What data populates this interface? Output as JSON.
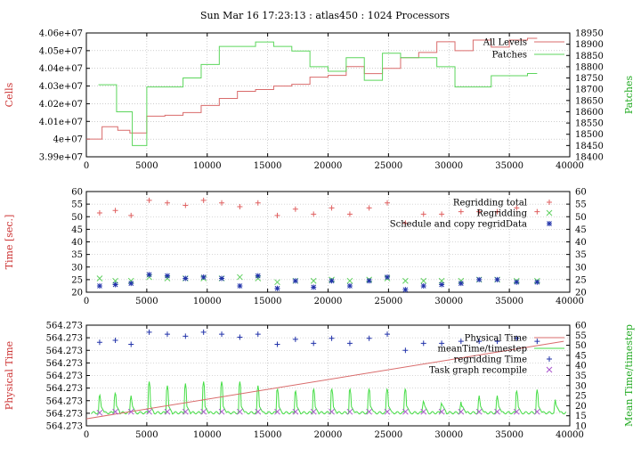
{
  "title": "Sun Mar 16 17:23:13 : atlas450 : 1024 Processors",
  "chart_data": [
    {
      "type": "line",
      "ylabel_left": "Cells",
      "ylabel_right": "Patches",
      "xlim": [
        0,
        40000
      ],
      "ylim_left": [
        39900000,
        40600000
      ],
      "ylim_right": [
        18400,
        18950
      ],
      "x_ticks": [
        "0",
        "5000",
        "10000",
        "15000",
        "20000",
        "25000",
        "30000",
        "35000",
        "40000"
      ],
      "y_ticks_left": [
        "3.99e+07",
        "4e+07",
        "4.01e+07",
        "4.02e+07",
        "4.03e+07",
        "4.04e+07",
        "4.05e+07",
        "4.06e+07"
      ],
      "y_ticks_right": [
        "18400",
        "18450",
        "18500",
        "18550",
        "18600",
        "18650",
        "18700",
        "18750",
        "18800",
        "18850",
        "18900",
        "18950"
      ],
      "grid": true,
      "legend_position": "top-right",
      "series": [
        {
          "name": "All Levels",
          "axis": "left",
          "step": true,
          "color": "#d96b6b",
          "x": [
            0,
            1300,
            2600,
            3600,
            5000,
            6500,
            8000,
            9500,
            11000,
            12500,
            14000,
            15500,
            17000,
            18500,
            20000,
            21500,
            23000,
            24500,
            26000,
            27500,
            29000,
            30500,
            32000,
            33500,
            35000,
            36500,
            37300
          ],
          "y": [
            40000000,
            40070000,
            40050000,
            40035000,
            40130000,
            40135000,
            40150000,
            40190000,
            40230000,
            40270000,
            40280000,
            40300000,
            40310000,
            40350000,
            40360000,
            40410000,
            40370000,
            40400000,
            40460000,
            40490000,
            40550000,
            40500000,
            40560000,
            40520000,
            40560000,
            40570000,
            40570000
          ]
        },
        {
          "name": "Patches",
          "axis": "right",
          "step": true,
          "color": "#5cd65c",
          "x": [
            1000,
            2500,
            3800,
            5000,
            6500,
            8000,
            9500,
            11000,
            12500,
            14000,
            15500,
            17000,
            18500,
            20000,
            21500,
            23000,
            24500,
            26000,
            27500,
            29000,
            30500,
            32000,
            33500,
            35000,
            36500,
            37300
          ],
          "y": [
            18720,
            18600,
            18450,
            18710,
            18710,
            18750,
            18810,
            18890,
            18890,
            18910,
            18890,
            18870,
            18800,
            18780,
            18840,
            18740,
            18860,
            18840,
            18840,
            18800,
            18710,
            18710,
            18760,
            18760,
            18770,
            18770
          ]
        }
      ]
    },
    {
      "type": "scatter",
      "ylabel_left": "Time [sec.]",
      "xlim": [
        0,
        40000
      ],
      "ylim": [
        20,
        60
      ],
      "x_ticks": [
        "0",
        "5000",
        "10000",
        "15000",
        "20000",
        "25000",
        "30000",
        "35000",
        "40000"
      ],
      "y_ticks": [
        "20",
        "25",
        "30",
        "35",
        "40",
        "45",
        "50",
        "55",
        "60"
      ],
      "grid": true,
      "legend_position": "top-right",
      "series": [
        {
          "name": "Regridding total",
          "marker": "plus",
          "color": "#e06060",
          "x": [
            1100,
            2400,
            3700,
            5200,
            6700,
            8200,
            9700,
            11200,
            12700,
            14200,
            15800,
            17300,
            18800,
            20300,
            21800,
            23400,
            24900,
            26400,
            27900,
            29400,
            31000,
            32500,
            34000,
            35600,
            37300
          ],
          "y": [
            51.5,
            52.5,
            50.5,
            56.5,
            55.5,
            54.5,
            56.5,
            55.5,
            54.0,
            55.5,
            50.5,
            53.0,
            51.0,
            53.5,
            51.0,
            53.5,
            55.5,
            47.5,
            51.0,
            51.0,
            52.0,
            52.0,
            52.0,
            53.5,
            52.0
          ]
        },
        {
          "name": "Regridding",
          "marker": "x",
          "color": "#60d060",
          "x": [
            1100,
            2400,
            3700,
            5200,
            6700,
            8200,
            9700,
            11200,
            12700,
            14200,
            15800,
            17300,
            18800,
            20300,
            21800,
            23400,
            24900,
            26400,
            27900,
            29400,
            31000,
            32500,
            34000,
            35600,
            37300
          ],
          "y": [
            25.5,
            24.5,
            24.5,
            26.0,
            25.5,
            25.5,
            25.5,
            25.5,
            26.0,
            25.5,
            24.0,
            24.5,
            24.5,
            25.0,
            24.5,
            25.0,
            25.5,
            24.5,
            24.5,
            24.5,
            24.5,
            25.0,
            25.0,
            24.5,
            24.5
          ]
        },
        {
          "name": "Schedule and copy regridData",
          "marker": "star",
          "color": "#2233aa",
          "x": [
            1100,
            2400,
            3700,
            5200,
            6700,
            8200,
            9700,
            11200,
            12700,
            14200,
            15800,
            17300,
            18800,
            20300,
            21800,
            23400,
            24900,
            26400,
            27900,
            29400,
            31000,
            32500,
            34000,
            35600,
            37300
          ],
          "y": [
            22.5,
            23.0,
            23.5,
            27.0,
            26.5,
            25.5,
            26.0,
            25.5,
            22.5,
            26.5,
            21.5,
            24.5,
            22.0,
            24.5,
            22.5,
            24.5,
            26.0,
            21.0,
            22.5,
            23.0,
            23.5,
            25.0,
            25.0,
            24.0,
            24.0
          ]
        }
      ]
    },
    {
      "type": "line",
      "ylabel_left": "Physical Time",
      "ylabel_right": "Mean Time/timestep",
      "xlim": [
        0,
        40000
      ],
      "ylim_right": [
        10,
        60
      ],
      "x_ticks": [
        "0",
        "5000",
        "10000",
        "15000",
        "20000",
        "25000",
        "30000",
        "35000",
        "40000"
      ],
      "y_ticks_left": [
        "564.273",
        "564.273",
        "564.273",
        "564.273",
        "564.273",
        "564.273",
        "564.273",
        "564.273",
        "564.273"
      ],
      "y_ticks_right": [
        "10",
        "15",
        "20",
        "25",
        "30",
        "35",
        "40",
        "45",
        "50",
        "55",
        "60"
      ],
      "grid": true,
      "legend_position": "top-right",
      "physical_time": {
        "name": "Physical Time",
        "color": "#d96b6b",
        "x": [
          0,
          39500
        ],
        "y_fraction": [
          0.07,
          0.84
        ]
      },
      "mean_time": {
        "name": "meanTime/timestep",
        "color": "#44dd44",
        "base": 16.5,
        "spikes": {
          "x": [
            1100,
            2400,
            3700,
            5200,
            6700,
            8200,
            9700,
            11200,
            12700,
            14200,
            15800,
            17300,
            18800,
            20300,
            21800,
            23400,
            24900,
            26400,
            27900,
            29400,
            31000,
            32500,
            34000,
            35600,
            37300,
            38800
          ],
          "y": [
            26,
            27,
            25,
            32,
            30,
            31,
            32,
            32,
            32,
            30,
            29,
            28,
            29,
            29,
            29,
            29,
            29,
            29,
            23,
            22,
            22,
            25,
            25,
            28,
            28,
            23
          ]
        }
      },
      "regridding_time": {
        "name": "regridding Time",
        "marker": "plus",
        "color": "#2233aa",
        "x": [
          1100,
          2400,
          3700,
          5200,
          6700,
          8200,
          9700,
          11200,
          12700,
          14200,
          15800,
          17300,
          18800,
          20300,
          21800,
          23400,
          24900,
          26400,
          27900,
          29400,
          31000,
          32500,
          34000,
          35600,
          37300
        ],
        "y": [
          51.5,
          52.5,
          50.5,
          56.5,
          55.5,
          54.5,
          56.5,
          55.5,
          54.0,
          55.5,
          50.5,
          53.0,
          51.0,
          53.5,
          51.0,
          53.5,
          55.5,
          47.5,
          51.0,
          51.0,
          52.0,
          52.0,
          52.0,
          53.5,
          52.0
        ]
      },
      "task_graph": {
        "name": "Task graph recompile",
        "marker": "x",
        "color": "#aa55cc",
        "x": [
          1100,
          2400,
          3700,
          5200,
          6700,
          8200,
          9700,
          11200,
          12700,
          14200,
          15800,
          17300,
          18800,
          20300,
          21800,
          23400,
          24900,
          26400,
          27900,
          29400,
          31000,
          32500,
          34000,
          35600,
          37300
        ],
        "y": [
          16.5,
          17.0,
          17.0,
          17.0,
          17.0,
          17.0,
          17.0,
          17.0,
          17.0,
          17.0,
          17.0,
          17.0,
          17.0,
          17.0,
          17.0,
          17.0,
          17.0,
          17.0,
          17.0,
          17.0,
          17.0,
          17.0,
          17.0,
          17.0,
          17.0
        ]
      }
    }
  ]
}
